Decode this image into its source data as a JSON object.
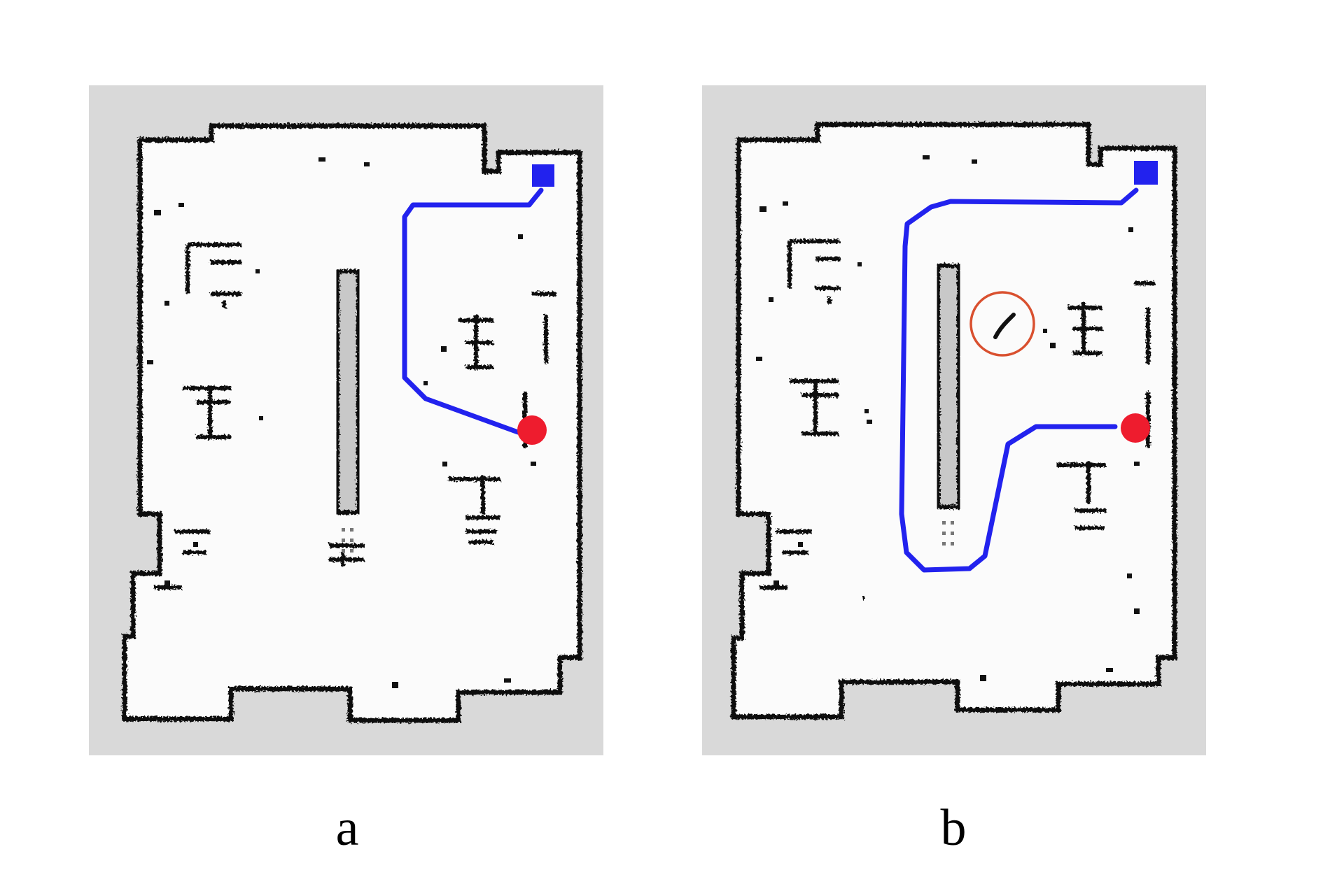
{
  "panels": [
    {
      "id": "a",
      "label": "a",
      "goal_marker": {
        "shape": "square",
        "color": "#2222ee"
      },
      "start_marker": {
        "shape": "circle",
        "color": "#ee1c2e"
      },
      "path_color": "#2222ee",
      "obstacle_marked": false
    },
    {
      "id": "b",
      "label": "b",
      "goal_marker": {
        "shape": "square",
        "color": "#2222ee"
      },
      "start_marker": {
        "shape": "circle",
        "color": "#ee1c2e"
      },
      "path_color": "#2222ee",
      "obstacle_marked": true,
      "obstacle_circle_color": "#d9502f"
    }
  ],
  "colors": {
    "map_background": "#d9d9d9",
    "free_space": "#fbfbfb",
    "wall": "#111111",
    "shelf_fill": "#c8c8c8"
  }
}
